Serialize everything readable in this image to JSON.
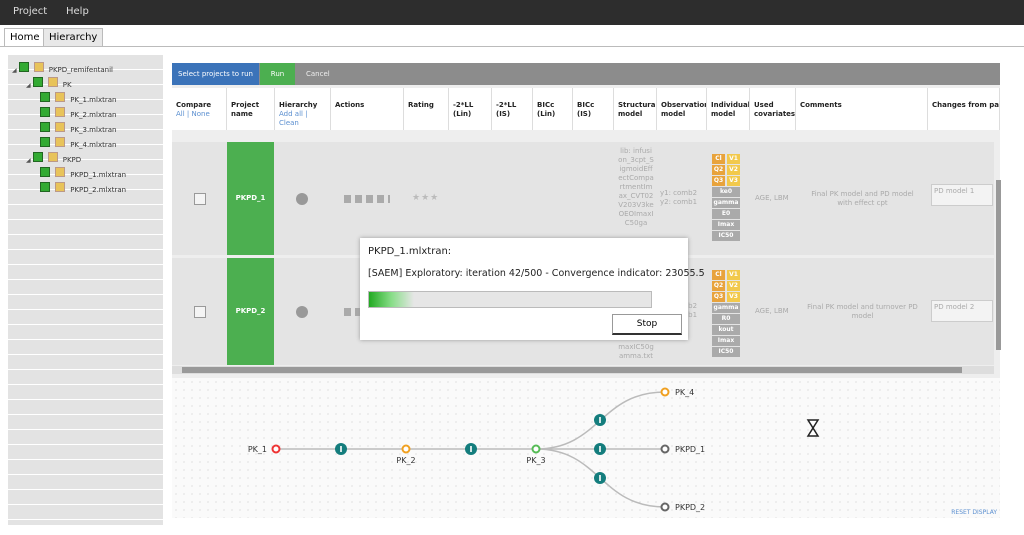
{
  "menu": [
    "Project",
    "Help"
  ],
  "tabs": [
    "Home",
    "Hierarchy"
  ],
  "tree": {
    "label": "PKPD_remifentanil",
    "children": [
      {
        "label": "PK",
        "children": [
          {
            "label": "PK_1.mlxtran"
          },
          {
            "label": "PK_2.mlxtran"
          },
          {
            "label": "PK_3.mlxtran"
          },
          {
            "label": "PK_4.mlxtran"
          }
        ]
      },
      {
        "label": "PKPD",
        "children": [
          {
            "label": "PKPD_1.mlxtran"
          },
          {
            "label": "PKPD_2.mlxtran"
          }
        ]
      }
    ]
  },
  "toolbar": {
    "select": "Select projects to run",
    "run": "Run",
    "cancel": "Cancel"
  },
  "table": {
    "headers": [
      "Compare",
      "Project name",
      "Hierarchy",
      "Actions",
      "Rating",
      "-2*LL (Lin)",
      "-2*LL (IS)",
      "BICc (Lin)",
      "BICc (IS)",
      "Structural model",
      "Observation model",
      "Individual model",
      "Used covariates",
      "Comments",
      "Changes from parent"
    ],
    "compare_sub": "All | None",
    "hierarchy_sub": "Add all | Clean",
    "rows": [
      {
        "name": "PKPD_1",
        "structural": "lib: infusion_3cpt_SigmoidEffectCompartmentImax_CVT02V203V3keOEOImaxIC50ga",
        "observation": "y1: comb2 y2: comb1",
        "individual": [
          "Cl",
          "V1",
          "Q2",
          "V2",
          "Q3",
          "V3",
          "ke0",
          "gamma",
          "E0",
          "Imax",
          "IC50"
        ],
        "covariates": "AGE, LBM",
        "comments": "Final PK model and PD model with effect cpt",
        "changes": "PD model 1"
      },
      {
        "name": "PKPD_2",
        "structural": "maxIC50gamma.txt",
        "observation": "y1: comb2 y2: comb1",
        "individual": [
          "Cl",
          "V1",
          "Q2",
          "V2",
          "Q3",
          "V3",
          "gamma",
          "R0",
          "kout",
          "Imax",
          "IC50"
        ],
        "covariates": "AGE, LBM",
        "comments": "Final PK model and turnover PD model",
        "changes": "PD model 2"
      }
    ]
  },
  "dialog": {
    "title": "PKPD_1.mlxtran:",
    "message": "[SAEM] Exploratory: iteration 42/500 - Convergence indicator: 23055.5",
    "button": "Stop"
  },
  "graph": {
    "nodes": [
      "PK_1",
      "PK_2",
      "PK_3",
      "PK_4",
      "PKPD_1",
      "PKPD_2"
    ],
    "reset": "RESET DISPLAY"
  }
}
